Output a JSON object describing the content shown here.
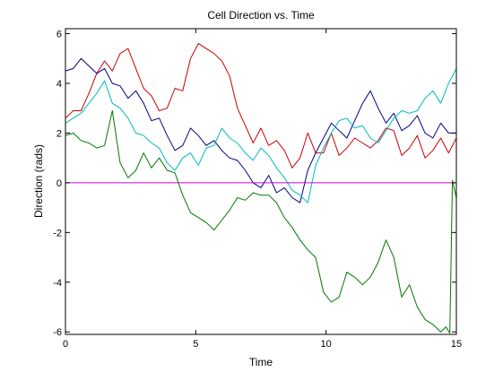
{
  "chart_data": {
    "type": "line",
    "title": "Cell Direction vs. Time",
    "xlabel": "Time",
    "ylabel": "Direction (rads)",
    "xlim": [
      0,
      15
    ],
    "ylim": [
      -6.1,
      6.2
    ],
    "xticks": [
      0,
      5,
      10,
      15
    ],
    "yticks": [
      -6,
      -4,
      -2,
      0,
      2,
      4,
      6
    ],
    "grid": false,
    "legend": "none",
    "reference_line": {
      "y": 0,
      "color": "#cc00cc"
    },
    "series": [
      {
        "color": "#cc0000",
        "x": [
          0,
          0.3,
          0.6,
          0.9,
          1.2,
          1.5,
          1.8,
          2.1,
          2.4,
          2.7,
          3.0,
          3.3,
          3.6,
          3.9,
          4.2,
          4.5,
          4.8,
          5.1,
          5.4,
          5.7,
          6.0,
          6.3,
          6.6,
          6.9,
          7.2,
          7.5,
          7.8,
          8.1,
          8.4,
          8.7,
          9.0,
          9.3,
          9.6,
          9.9,
          10.2,
          10.5,
          10.8,
          11.1,
          11.4,
          11.7,
          12.0,
          12.3,
          12.6,
          12.9,
          13.2,
          13.5,
          13.8,
          14.1,
          14.4,
          14.7,
          15.0
        ],
        "y": [
          2.6,
          2.9,
          2.9,
          3.6,
          4.4,
          4.9,
          4.5,
          5.2,
          5.4,
          4.6,
          3.8,
          3.5,
          2.9,
          3.0,
          3.8,
          3.7,
          5.0,
          5.6,
          5.4,
          5.2,
          4.9,
          4.3,
          3.0,
          2.3,
          1.6,
          2.2,
          1.5,
          1.7,
          1.3,
          0.6,
          1.0,
          2.0,
          1.2,
          1.2,
          2.0,
          1.1,
          1.4,
          1.8,
          1.6,
          1.4,
          1.7,
          2.2,
          2.1,
          1.1,
          1.4,
          1.9,
          1.0,
          1.3,
          1.8,
          1.2,
          1.8
        ]
      },
      {
        "color": "#00008b",
        "x": [
          0,
          0.3,
          0.6,
          0.9,
          1.2,
          1.5,
          1.8,
          2.1,
          2.4,
          2.7,
          3.0,
          3.3,
          3.6,
          3.9,
          4.2,
          4.5,
          4.8,
          5.1,
          5.4,
          5.7,
          6.0,
          6.3,
          6.6,
          6.9,
          7.2,
          7.5,
          7.8,
          8.1,
          8.4,
          8.7,
          9.0,
          9.3,
          9.6,
          9.9,
          10.2,
          10.5,
          10.8,
          11.1,
          11.4,
          11.7,
          12.0,
          12.3,
          12.6,
          12.9,
          13.2,
          13.5,
          13.8,
          14.1,
          14.4,
          14.7,
          15.0
        ],
        "y": [
          4.5,
          4.6,
          5.0,
          4.7,
          4.4,
          4.6,
          4.0,
          3.9,
          3.4,
          3.7,
          3.2,
          2.5,
          2.6,
          1.9,
          1.3,
          1.5,
          2.2,
          1.9,
          1.5,
          1.7,
          1.3,
          1.0,
          0.9,
          0.5,
          0.0,
          -0.2,
          0.3,
          -0.4,
          -0.2,
          -0.6,
          -0.8,
          0.5,
          1.2,
          1.8,
          2.4,
          2.1,
          1.8,
          2.5,
          3.2,
          3.7,
          3.0,
          2.4,
          2.8,
          2.1,
          2.3,
          2.7,
          2.0,
          1.8,
          2.4,
          2.0,
          2.0
        ]
      },
      {
        "color": "#00bbbb",
        "x": [
          0,
          0.3,
          0.6,
          0.9,
          1.2,
          1.5,
          1.8,
          2.1,
          2.4,
          2.7,
          3.0,
          3.3,
          3.6,
          3.9,
          4.2,
          4.5,
          4.8,
          5.1,
          5.4,
          5.7,
          6.0,
          6.3,
          6.6,
          6.9,
          7.2,
          7.5,
          7.8,
          8.1,
          8.4,
          8.7,
          9.0,
          9.3,
          9.6,
          9.9,
          10.2,
          10.5,
          10.8,
          11.1,
          11.4,
          11.7,
          12.0,
          12.3,
          12.6,
          12.9,
          13.2,
          13.5,
          13.8,
          14.1,
          14.4,
          14.7,
          15.0
        ],
        "y": [
          2.4,
          2.6,
          2.8,
          3.2,
          3.6,
          4.1,
          3.2,
          3.0,
          2.6,
          2.0,
          1.9,
          1.6,
          1.4,
          0.8,
          0.5,
          1.0,
          1.2,
          0.7,
          1.4,
          1.5,
          2.2,
          1.8,
          1.6,
          1.2,
          0.9,
          1.4,
          1.1,
          0.6,
          0.2,
          -0.3,
          -0.5,
          -0.8,
          0.7,
          1.4,
          2.0,
          2.5,
          2.6,
          2.2,
          2.3,
          1.8,
          1.6,
          2.1,
          2.6,
          2.9,
          2.8,
          2.9,
          3.4,
          3.7,
          3.2,
          4.0,
          4.6
        ]
      },
      {
        "color": "#007700",
        "x": [
          0,
          0.3,
          0.6,
          0.9,
          1.2,
          1.5,
          1.8,
          2.1,
          2.4,
          2.7,
          3.0,
          3.3,
          3.6,
          3.9,
          4.2,
          4.5,
          4.8,
          5.1,
          5.4,
          5.7,
          6.0,
          6.3,
          6.6,
          6.9,
          7.2,
          7.5,
          7.8,
          8.1,
          8.4,
          8.7,
          9.0,
          9.3,
          9.6,
          9.9,
          10.2,
          10.5,
          10.8,
          11.1,
          11.4,
          11.7,
          12.0,
          12.3,
          12.6,
          12.9,
          13.2,
          13.5,
          13.8,
          14.1,
          14.4,
          14.6,
          14.75,
          14.85,
          15.0
        ],
        "y": [
          1.9,
          2.0,
          1.7,
          1.6,
          1.4,
          1.5,
          2.9,
          0.8,
          0.2,
          0.5,
          1.2,
          0.6,
          1.0,
          0.5,
          0.4,
          -0.5,
          -1.2,
          -1.4,
          -1.6,
          -1.9,
          -1.5,
          -1.1,
          -0.6,
          -0.7,
          -0.4,
          -0.5,
          -0.5,
          -0.8,
          -1.4,
          -1.8,
          -2.3,
          -2.7,
          -3.0,
          -4.4,
          -4.8,
          -4.6,
          -3.6,
          -3.8,
          -4.1,
          -3.8,
          -3.2,
          -2.3,
          -3.0,
          -4.6,
          -4.1,
          -5.0,
          -5.5,
          -5.7,
          -6.0,
          -5.8,
          -6.05,
          0.1,
          -0.6
        ]
      }
    ]
  }
}
